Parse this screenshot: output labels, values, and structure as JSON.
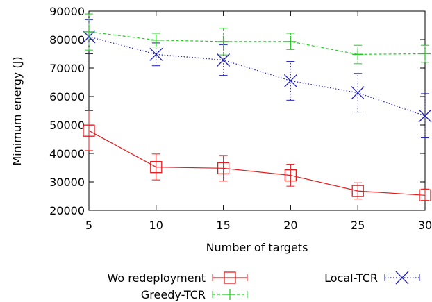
{
  "chart_data": {
    "type": "line",
    "xlabel": "Number of targets",
    "ylabel": "Minimum energy (J)",
    "x": [
      5,
      10,
      15,
      20,
      25,
      30
    ],
    "xlim": [
      5,
      30
    ],
    "ylim": [
      20000,
      90000
    ],
    "xticks": [
      5,
      10,
      15,
      20,
      25,
      30
    ],
    "yticks": [
      20000,
      30000,
      40000,
      50000,
      60000,
      70000,
      80000,
      90000
    ],
    "grid": false,
    "legend_position": "bottom",
    "series": [
      {
        "name": "Wo redeployment",
        "color": "#e41a1c",
        "marker": "square",
        "dash": "solid",
        "values": [
          48000,
          35200,
          34800,
          32300,
          26800,
          25300
        ],
        "err_low": [
          41000,
          30700,
          30300,
          28500,
          24000,
          23500
        ],
        "err_high": [
          55000,
          39800,
          39300,
          36200,
          29700,
          27500
        ]
      },
      {
        "name": "Local-TCR",
        "color": "#1f1fbf",
        "marker": "x",
        "dash": "dotted",
        "values": [
          81000,
          74800,
          72800,
          65500,
          61300,
          53200
        ],
        "err_low": [
          75000,
          70800,
          67400,
          58700,
          54500,
          45500
        ],
        "err_high": [
          87000,
          78800,
          78200,
          72300,
          68100,
          61000
        ]
      },
      {
        "name": "Greedy-TCR",
        "color": "#22cc22",
        "marker": "plus",
        "dash": "dashed",
        "values": [
          82700,
          79800,
          79300,
          79300,
          74800,
          75000
        ],
        "err_low": [
          76300,
          77400,
          74600,
          76500,
          71500,
          72000
        ],
        "err_high": [
          89000,
          82200,
          84000,
          82200,
          78000,
          78000
        ]
      }
    ]
  }
}
